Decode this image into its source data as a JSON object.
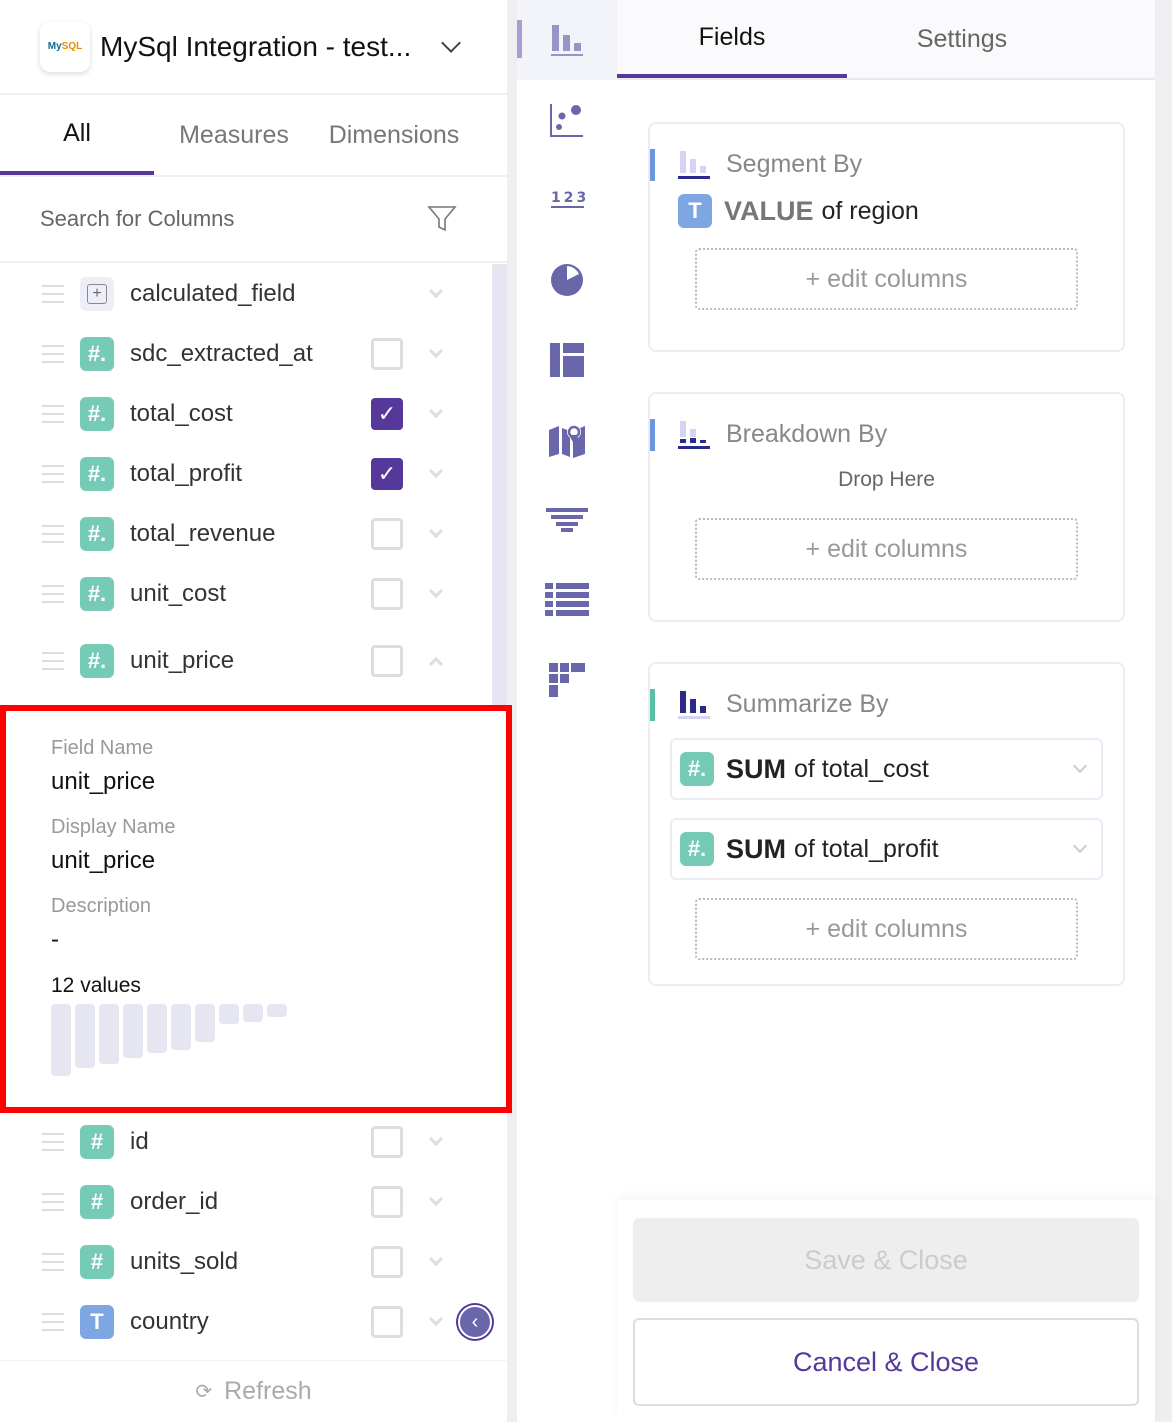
{
  "header": {
    "title": "MySql Integration - test...",
    "logo_text": "MySQL"
  },
  "tabs": [
    {
      "label": "All",
      "active": true
    },
    {
      "label": "Measures"
    },
    {
      "label": "Dimensions"
    }
  ],
  "search": {
    "placeholder": "Search for Columns"
  },
  "fields": [
    {
      "name": "calculated_field",
      "type": "calculated"
    },
    {
      "name": "sdc_extracted_at",
      "type": "number",
      "checked": false
    },
    {
      "name": "total_cost",
      "type": "number",
      "checked": true
    },
    {
      "name": "total_profit",
      "type": "number",
      "checked": true
    },
    {
      "name": "total_revenue",
      "type": "number",
      "checked": false
    },
    {
      "name": "unit_cost",
      "type": "number",
      "checked": false
    },
    {
      "name": "unit_price",
      "type": "number",
      "checked": false,
      "expanded": true
    }
  ],
  "detail": {
    "field_name_label": "Field Name",
    "field_name": "unit_price",
    "display_name_label": "Display Name",
    "display_name": "unit_price",
    "description_label": "Description",
    "description": "-",
    "values_count": "12 values",
    "histogram": [
      1.0,
      0.89,
      0.83,
      0.75,
      0.68,
      0.64,
      0.53,
      0.28,
      0.25,
      0.18
    ]
  },
  "fields2": [
    {
      "name": "id",
      "type": "number",
      "checked": false
    },
    {
      "name": "order_id",
      "type": "number",
      "checked": false
    },
    {
      "name": "units_sold",
      "type": "number",
      "checked": false
    },
    {
      "name": "country",
      "type": "text",
      "checked": false
    }
  ],
  "footer": {
    "refresh": "Refresh"
  },
  "chart_types": [
    "bar-chart",
    "scatter",
    "number",
    "pie",
    "treemap",
    "map",
    "funnel",
    "table",
    "heatmap"
  ],
  "right": {
    "tabs": [
      {
        "label": "Fields",
        "active": true
      },
      {
        "label": "Settings"
      }
    ],
    "segment": {
      "title": "Segment By",
      "agg": "VALUE",
      "of": "of region",
      "edit": "+ edit columns"
    },
    "breakdown": {
      "title": "Breakdown By",
      "drop": "Drop Here",
      "edit": "+ edit columns"
    },
    "summarize": {
      "title": "Summarize By",
      "items": [
        {
          "agg": "SUM",
          "of": "of total_cost"
        },
        {
          "agg": "SUM",
          "of": "of total_profit"
        }
      ],
      "edit": "+ edit columns"
    },
    "save": "Save & Close",
    "cancel": "Cancel & Close"
  },
  "colors": {
    "accent": "#55389a",
    "number": "#76cbb6",
    "text": "#7ea6e3",
    "icon": "#6a66aa"
  }
}
